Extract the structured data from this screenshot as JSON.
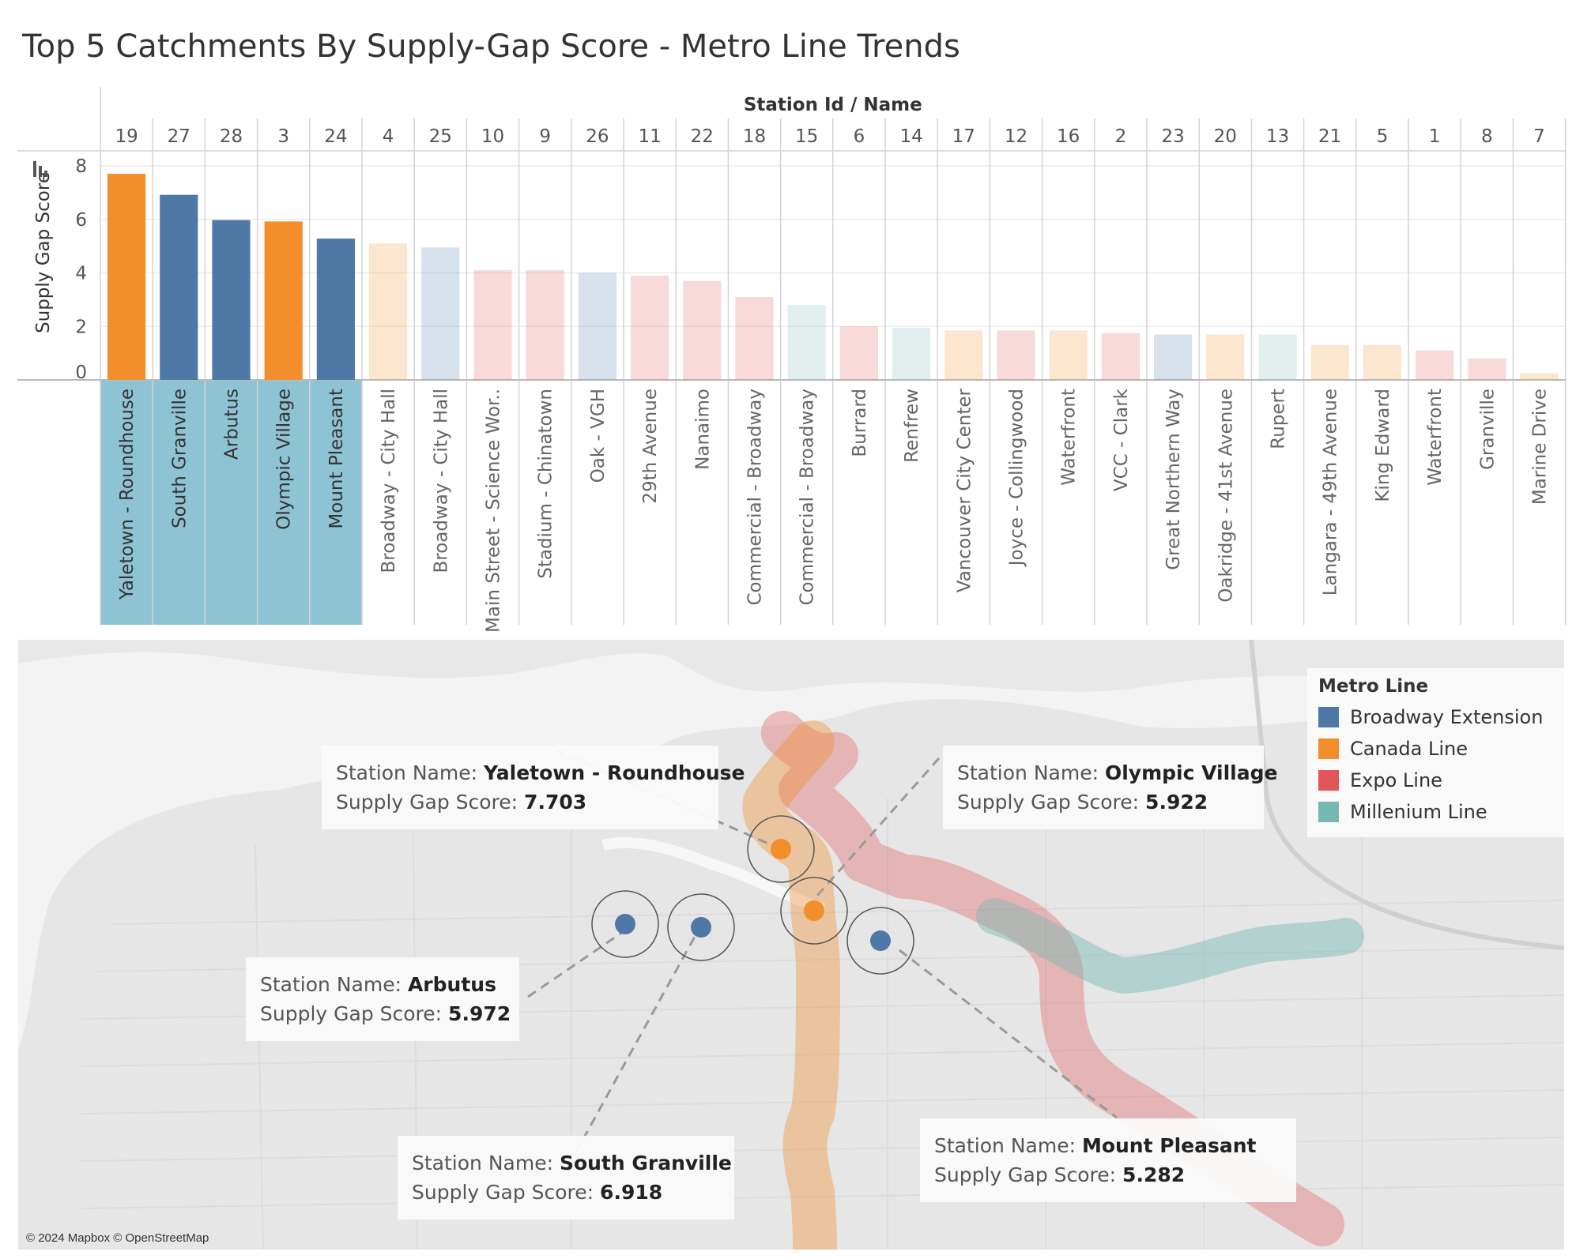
{
  "title": "Top 5 Catchments By Supply-Gap Score - Metro Line Trends",
  "colors": {
    "Broadway Extension": "#4e79a7",
    "Canada Line": "#f28e2b",
    "Expo Line": "#e15759",
    "Millenium Line": "#76b7b2",
    "highlight_band": "#8ec3d4"
  },
  "chart_data": {
    "type": "bar",
    "xlabel": "Station Id  /  Name",
    "ylabel": "Supply Gap Score",
    "ylim": [
      0,
      8
    ],
    "yticks": [
      0,
      2,
      4,
      6,
      8
    ],
    "grid": true,
    "categories": [
      {
        "id": "19",
        "name": "Yaletown - Roundhouse",
        "value": 7.703,
        "line": "Canada Line",
        "top5": true
      },
      {
        "id": "27",
        "name": "South Granville",
        "value": 6.918,
        "line": "Broadway Extension",
        "top5": true
      },
      {
        "id": "28",
        "name": "Arbutus",
        "value": 5.972,
        "line": "Broadway Extension",
        "top5": true
      },
      {
        "id": "3",
        "name": "Olympic Village",
        "value": 5.922,
        "line": "Canada Line",
        "top5": true
      },
      {
        "id": "24",
        "name": "Mount Pleasant",
        "value": 5.282,
        "line": "Broadway Extension",
        "top5": true
      },
      {
        "id": "4",
        "name": "Broadway - City Hall",
        "value": 5.1,
        "line": "Canada Line",
        "top5": false
      },
      {
        "id": "25",
        "name": "Broadway - City Hall",
        "value": 4.95,
        "line": "Broadway Extension",
        "top5": false
      },
      {
        "id": "10",
        "name": "Main Street - Science Wor..",
        "value": 4.1,
        "line": "Expo Line",
        "top5": false
      },
      {
        "id": "9",
        "name": "Stadium - Chinatown",
        "value": 4.1,
        "line": "Expo Line",
        "top5": false
      },
      {
        "id": "26",
        "name": "Oak - VGH",
        "value": 4.0,
        "line": "Broadway Extension",
        "top5": false
      },
      {
        "id": "11",
        "name": "29th Avenue",
        "value": 3.9,
        "line": "Expo Line",
        "top5": false
      },
      {
        "id": "22",
        "name": "Nanaimo",
        "value": 3.7,
        "line": "Expo Line",
        "top5": false
      },
      {
        "id": "18",
        "name": "Commercial - Broadway",
        "value": 3.1,
        "line": "Expo Line",
        "top5": false
      },
      {
        "id": "15",
        "name": "Commercial - Broadway",
        "value": 2.8,
        "line": "Millenium Line",
        "top5": false
      },
      {
        "id": "6",
        "name": "Burrard",
        "value": 2.0,
        "line": "Expo Line",
        "top5": false
      },
      {
        "id": "14",
        "name": "Renfrew",
        "value": 1.95,
        "line": "Millenium Line",
        "top5": false
      },
      {
        "id": "17",
        "name": "Vancouver City Center",
        "value": 1.85,
        "line": "Canada Line",
        "top5": false
      },
      {
        "id": "12",
        "name": "Joyce - Collingwood",
        "value": 1.85,
        "line": "Expo Line",
        "top5": false
      },
      {
        "id": "16",
        "name": "Waterfront",
        "value": 1.85,
        "line": "Canada Line",
        "top5": false
      },
      {
        "id": "2",
        "name": "VCC - Clark",
        "value": 1.75,
        "line": "Expo Line",
        "top5": false
      },
      {
        "id": "23",
        "name": "Great Northern Way",
        "value": 1.7,
        "line": "Broadway Extension",
        "top5": false
      },
      {
        "id": "20",
        "name": "Oakridge - 41st Avenue",
        "value": 1.7,
        "line": "Canada Line",
        "top5": false
      },
      {
        "id": "13",
        "name": "Rupert",
        "value": 1.7,
        "line": "Millenium Line",
        "top5": false
      },
      {
        "id": "21",
        "name": "Langara - 49th Avenue",
        "value": 1.3,
        "line": "Canada Line",
        "top5": false
      },
      {
        "id": "5",
        "name": "King Edward",
        "value": 1.3,
        "line": "Canada Line",
        "top5": false
      },
      {
        "id": "1",
        "name": "Waterfront",
        "value": 1.1,
        "line": "Expo Line",
        "top5": false
      },
      {
        "id": "8",
        "name": "Granville",
        "value": 0.8,
        "line": "Expo Line",
        "top5": false
      },
      {
        "id": "7",
        "name": "Marine Drive",
        "value": 0.25,
        "line": "Canada Line",
        "top5": false
      }
    ]
  },
  "map": {
    "legend": {
      "title": "Metro Line",
      "items": [
        {
          "label": "Broadway Extension",
          "color": "#4e79a7"
        },
        {
          "label": "Canada Line",
          "color": "#f28e2b"
        },
        {
          "label": "Expo Line",
          "color": "#e15759"
        },
        {
          "label": "Millenium Line",
          "color": "#76b7b2"
        }
      ]
    },
    "callouts": [
      {
        "name_label": "Station Name: ",
        "name": "Yaletown - Roundhouse",
        "score_label": "Supply Gap Score: ",
        "score": "7.703"
      },
      {
        "name_label": "Station Name: ",
        "name": "Olympic Village",
        "score_label": "Supply Gap Score: ",
        "score": "5.922"
      },
      {
        "name_label": "Station Name: ",
        "name": "Arbutus",
        "score_label": "Supply Gap Score: ",
        "score": "5.972"
      },
      {
        "name_label": "Station Name: ",
        "name": "South Granville",
        "score_label": "Supply Gap Score: ",
        "score": "6.918"
      },
      {
        "name_label": "Station Name:  ",
        "name": "Mount Pleasant",
        "score_label": "Supply Gap Score: ",
        "score": "5.282"
      }
    ],
    "attribution": "© 2024 Mapbox © OpenStreetMap"
  }
}
